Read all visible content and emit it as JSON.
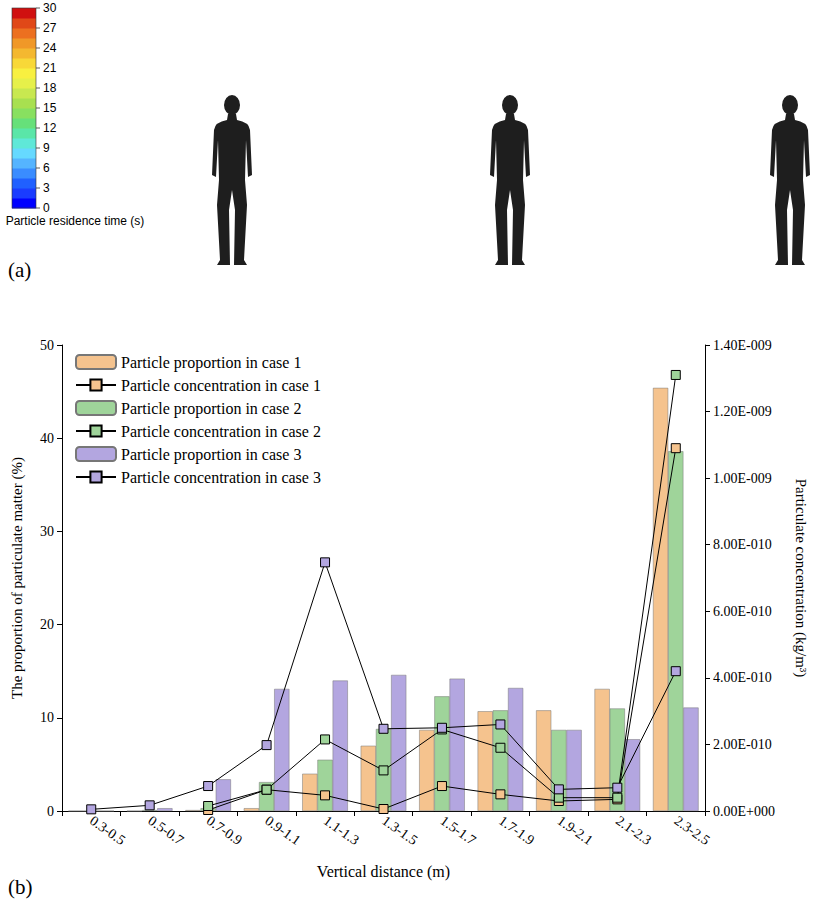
{
  "chart_data": [
    {
      "type": "scatter",
      "label": "(a)",
      "colorbar": {
        "title": "Particle residence time (s)",
        "range": [
          0,
          30
        ],
        "ticks": [
          0,
          3,
          6,
          9,
          12,
          15,
          18,
          21,
          24,
          27,
          30
        ],
        "colors": [
          "#0000ff",
          "#1a3cff",
          "#2060ff",
          "#3a8cff",
          "#55b4ff",
          "#66d9ff",
          "#5fe8d8",
          "#5ae6a8",
          "#66e07a",
          "#88e060",
          "#a8e050",
          "#c8e850",
          "#e6f04a",
          "#f8f040",
          "#f8d838",
          "#f4b830",
          "#f09828",
          "#ec7020",
          "#e04818",
          "#d01010"
        ]
      }
    },
    {
      "type": "bar",
      "label": "(b)",
      "categories": [
        "0.3-0.5",
        "0.5-0.7",
        "0.7-0.9",
        "0.9-1.1",
        "1.1-1.3",
        "1.3-1.5",
        "1.5-1.7",
        "1.7-1.9",
        "1.9-2.1",
        "2.1-2.3",
        "2.3-2.5"
      ],
      "xlabel": "Vertical distance (m)",
      "ylabel": "The proportion of particulate matter (%)",
      "y2label": "Particulate concentration (kg/m³)",
      "ylim": [
        0,
        50
      ],
      "yticks": [
        0,
        10,
        20,
        30,
        40,
        50
      ],
      "y2lim": [
        0,
        1.4e-09
      ],
      "y2ticks": [
        {
          "value": 0,
          "label": "0.00E+000"
        },
        {
          "value": 2e-10,
          "label": "2.00E-010"
        },
        {
          "value": 4e-10,
          "label": "4.00E-010"
        },
        {
          "value": 6e-10,
          "label": "6.00E-010"
        },
        {
          "value": 8e-10,
          "label": "8.00E-010"
        },
        {
          "value": 1e-09,
          "label": "1.00E-009"
        },
        {
          "value": 1.2e-09,
          "label": "1.20E-009"
        },
        {
          "value": 1.4e-09,
          "label": "1.40E-009"
        }
      ],
      "grid": false,
      "legend": "upper left",
      "series": [
        {
          "name": "Particle proportion in case 1",
          "type": "bar",
          "color": "#f5c38e",
          "values": [
            0,
            0,
            0.1,
            0.3,
            4.0,
            7.0,
            8.7,
            10.7,
            10.8,
            13.1,
            45.4
          ]
        },
        {
          "name": "Particle concentration in case 1",
          "type": "line",
          "axis": "y2",
          "marker": "square",
          "color": "#f5c38e",
          "values": [
            null,
            null,
            3e-12,
            6.4e-11,
            4.7e-11,
            6e-12,
            7.5e-11,
            5e-11,
            3e-11,
            3.5e-11,
            1.09e-09
          ]
        },
        {
          "name": "Particle proportion in case 2",
          "type": "bar",
          "color": "#9fd49a",
          "values": [
            0,
            0.1,
            0.3,
            3.1,
            5.5,
            8.8,
            12.3,
            10.8,
            8.7,
            11.0,
            38.6
          ]
        },
        {
          "name": "Particle concentration in case 2",
          "type": "line",
          "axis": "y2",
          "marker": "square",
          "color": "#9fd49a",
          "values": [
            null,
            null,
            1.5e-11,
            6.4e-11,
            2.15e-10,
            1.22e-10,
            2.45e-10,
            1.9e-10,
            4e-11,
            4e-11,
            1.31e-09
          ]
        },
        {
          "name": "Particle proportion in case 3",
          "type": "bar",
          "color": "#b3a6e0",
          "values": [
            0,
            0.3,
            3.4,
            13.1,
            14.0,
            14.6,
            14.2,
            13.2,
            8.7,
            7.7,
            11.1
          ]
        },
        {
          "name": "Particle concentration in case 3",
          "type": "line",
          "axis": "y2",
          "marker": "square",
          "color": "#b3a6e0",
          "values": [
            5e-12,
            1.7e-11,
            7.5e-11,
            1.98e-10,
            7.47e-10,
            2.47e-10,
            2.5e-10,
            2.6e-10,
            6.5e-11,
            7e-11,
            4.2e-10
          ]
        }
      ]
    }
  ]
}
